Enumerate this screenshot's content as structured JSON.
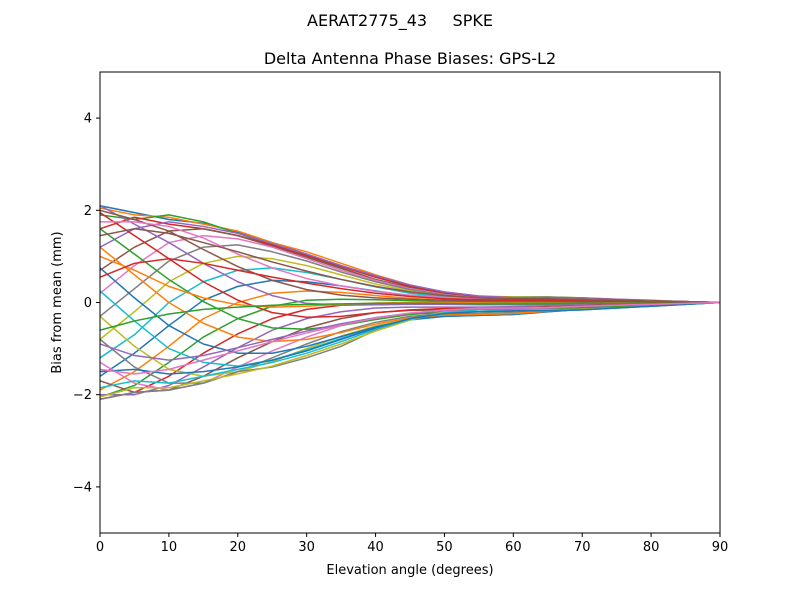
{
  "figure": {
    "suptitle": "AERAT2775_43     SPKE"
  },
  "chart_data": {
    "type": "line",
    "title": "Delta Antenna Phase Biases: GPS-L2",
    "xlabel": "Elevation angle (degrees)",
    "ylabel": "Bias from mean (mm)",
    "xlim": [
      0,
      90
    ],
    "ylim": [
      -5,
      5
    ],
    "xticks": [
      0,
      10,
      20,
      30,
      40,
      50,
      60,
      70,
      80,
      90
    ],
    "yticks": [
      -4,
      -2,
      0,
      2,
      4
    ],
    "ytick_labels": [
      "−4",
      "−2",
      "0",
      "2",
      "4"
    ],
    "grid": false,
    "legend": "none",
    "colors": [
      "#1f77b4",
      "#ff7f0e",
      "#2ca02c",
      "#d62728",
      "#9467bd",
      "#8c564b",
      "#e377c2",
      "#7f7f7f",
      "#bcbd22",
      "#17becf"
    ],
    "x": [
      0,
      5,
      10,
      15,
      20,
      25,
      30,
      35,
      40,
      45,
      50,
      55,
      60,
      65,
      70,
      75,
      80,
      85,
      90
    ],
    "series": [
      {
        "values": [
          2.1,
          1.95,
          1.8,
          1.72,
          1.52,
          1.3,
          1.05,
          0.8,
          0.55,
          0.35,
          0.2,
          0.12,
          0.1,
          0.1,
          0.08,
          0.05,
          0.03,
          0.02,
          0
        ]
      },
      {
        "values": [
          2.05,
          1.9,
          1.85,
          1.7,
          1.55,
          1.3,
          1.1,
          0.85,
          0.6,
          0.38,
          0.22,
          0.14,
          0.12,
          0.12,
          0.1,
          0.07,
          0.04,
          0.02,
          0
        ]
      },
      {
        "values": [
          1.9,
          1.8,
          1.9,
          1.75,
          1.5,
          1.25,
          1.0,
          0.75,
          0.5,
          0.32,
          0.2,
          0.13,
          0.11,
          0.12,
          0.1,
          0.06,
          0.04,
          0.02,
          0
        ]
      },
      {
        "values": [
          1.6,
          1.85,
          1.7,
          1.6,
          1.45,
          1.25,
          1.02,
          0.78,
          0.55,
          0.35,
          0.2,
          0.12,
          0.1,
          0.1,
          0.08,
          0.06,
          0.04,
          0.02,
          0
        ]
      },
      {
        "values": [
          1.2,
          1.6,
          1.75,
          1.65,
          1.5,
          1.28,
          1.05,
          0.8,
          0.58,
          0.38,
          0.23,
          0.14,
          0.1,
          0.11,
          0.1,
          0.07,
          0.05,
          0.02,
          0
        ]
      },
      {
        "values": [
          0.7,
          1.2,
          1.55,
          1.6,
          1.45,
          1.22,
          0.98,
          0.74,
          0.5,
          0.32,
          0.18,
          0.1,
          0.08,
          0.09,
          0.08,
          0.06,
          0.04,
          0.02,
          0
        ]
      },
      {
        "values": [
          0.2,
          0.8,
          1.3,
          1.45,
          1.38,
          1.2,
          0.95,
          0.7,
          0.48,
          0.3,
          0.17,
          0.1,
          0.08,
          0.08,
          0.07,
          0.05,
          0.03,
          0.01,
          0
        ]
      },
      {
        "values": [
          -0.3,
          0.3,
          0.9,
          1.2,
          1.25,
          1.1,
          0.9,
          0.66,
          0.45,
          0.28,
          0.16,
          0.09,
          0.07,
          0.08,
          0.07,
          0.05,
          0.03,
          0.01,
          0
        ]
      },
      {
        "values": [
          -0.8,
          -0.2,
          0.45,
          0.85,
          1.0,
          0.95,
          0.8,
          0.6,
          0.4,
          0.25,
          0.14,
          0.08,
          0.06,
          0.07,
          0.06,
          0.04,
          0.03,
          0.01,
          0
        ]
      },
      {
        "values": [
          -1.2,
          -0.7,
          0.0,
          0.45,
          0.7,
          0.75,
          0.65,
          0.5,
          0.34,
          0.2,
          0.12,
          0.07,
          0.05,
          0.06,
          0.05,
          0.04,
          0.02,
          0.01,
          0
        ]
      },
      {
        "values": [
          -1.6,
          -1.1,
          -0.5,
          0.05,
          0.35,
          0.48,
          0.45,
          0.36,
          0.25,
          0.15,
          0.08,
          0.04,
          0.03,
          0.04,
          0.04,
          0.03,
          0.02,
          0.01,
          0
        ]
      },
      {
        "values": [
          -1.9,
          -1.5,
          -0.95,
          -0.35,
          0.0,
          0.2,
          0.25,
          0.22,
          0.15,
          0.09,
          0.05,
          0.02,
          0.01,
          0.02,
          0.02,
          0.02,
          0.01,
          0.0,
          0
        ]
      },
      {
        "values": [
          -2.05,
          -1.8,
          -1.3,
          -0.75,
          -0.35,
          -0.08,
          0.05,
          0.07,
          0.06,
          0.04,
          0.02,
          0.0,
          -0.01,
          0.0,
          0.0,
          0.0,
          0.0,
          0.0,
          0
        ]
      },
      {
        "values": [
          -2.1,
          -1.95,
          -1.6,
          -1.1,
          -0.68,
          -0.35,
          -0.15,
          -0.06,
          -0.03,
          -0.03,
          -0.03,
          -0.04,
          -0.04,
          -0.03,
          -0.02,
          -0.01,
          -0.01,
          0.0,
          0
        ]
      },
      {
        "values": [
          -2.0,
          -2.0,
          -1.8,
          -1.4,
          -0.98,
          -0.6,
          -0.35,
          -0.2,
          -0.12,
          -0.1,
          -0.1,
          -0.1,
          -0.09,
          -0.07,
          -0.05,
          -0.04,
          -0.02,
          -0.01,
          0
        ]
      },
      {
        "values": [
          -1.7,
          -1.95,
          -1.9,
          -1.6,
          -1.2,
          -0.85,
          -0.55,
          -0.35,
          -0.22,
          -0.17,
          -0.16,
          -0.15,
          -0.14,
          -0.11,
          -0.08,
          -0.06,
          -0.04,
          -0.02,
          0
        ]
      },
      {
        "values": [
          -1.3,
          -1.75,
          -1.9,
          -1.75,
          -1.4,
          -1.05,
          -0.75,
          -0.5,
          -0.33,
          -0.24,
          -0.21,
          -0.2,
          -0.18,
          -0.14,
          -0.1,
          -0.07,
          -0.05,
          -0.02,
          0
        ]
      },
      {
        "values": [
          -0.8,
          -1.4,
          -1.75,
          -1.75,
          -1.5,
          -1.2,
          -0.9,
          -0.63,
          -0.43,
          -0.3,
          -0.25,
          -0.24,
          -0.22,
          -0.17,
          -0.12,
          -0.09,
          -0.06,
          -0.03,
          0
        ]
      },
      {
        "values": [
          -0.3,
          -0.95,
          -1.45,
          -1.6,
          -1.5,
          -1.28,
          -1.0,
          -0.73,
          -0.51,
          -0.35,
          -0.28,
          -0.26,
          -0.24,
          -0.19,
          -0.14,
          -0.1,
          -0.07,
          -0.03,
          0
        ]
      },
      {
        "values": [
          0.25,
          -0.4,
          -1.0,
          -1.3,
          -1.38,
          -1.25,
          -1.03,
          -0.78,
          -0.55,
          -0.38,
          -0.3,
          -0.28,
          -0.26,
          -0.2,
          -0.15,
          -0.11,
          -0.07,
          -0.03,
          0
        ]
      },
      {
        "values": [
          0.75,
          0.1,
          -0.5,
          -0.9,
          -1.1,
          -1.1,
          -0.95,
          -0.74,
          -0.53,
          -0.37,
          -0.3,
          -0.28,
          -0.26,
          -0.2,
          -0.15,
          -0.11,
          -0.07,
          -0.03,
          0
        ]
      },
      {
        "values": [
          1.2,
          0.6,
          0.0,
          -0.45,
          -0.75,
          -0.85,
          -0.8,
          -0.65,
          -0.47,
          -0.33,
          -0.27,
          -0.26,
          -0.24,
          -0.19,
          -0.14,
          -0.1,
          -0.07,
          -0.03,
          0
        ]
      },
      {
        "values": [
          1.6,
          1.05,
          0.5,
          0.02,
          -0.35,
          -0.55,
          -0.58,
          -0.5,
          -0.37,
          -0.26,
          -0.21,
          -0.2,
          -0.19,
          -0.15,
          -0.11,
          -0.08,
          -0.05,
          -0.02,
          0
        ]
      },
      {
        "values": [
          1.95,
          1.45,
          0.95,
          0.45,
          0.05,
          -0.22,
          -0.32,
          -0.3,
          -0.22,
          -0.16,
          -0.13,
          -0.13,
          -0.12,
          -0.1,
          -0.07,
          -0.05,
          -0.03,
          -0.01,
          0
        ]
      },
      {
        "values": [
          2.1,
          1.7,
          1.3,
          0.85,
          0.45,
          0.15,
          -0.02,
          -0.06,
          -0.05,
          -0.04,
          -0.04,
          -0.05,
          -0.05,
          -0.04,
          -0.03,
          -0.02,
          -0.01,
          0.0,
          0
        ]
      },
      {
        "values": [
          2.0,
          1.8,
          1.55,
          1.15,
          0.78,
          0.48,
          0.28,
          0.16,
          0.1,
          0.07,
          0.05,
          0.03,
          0.03,
          0.03,
          0.02,
          0.02,
          0.01,
          0.0,
          0
        ]
      },
      {
        "values": [
          1.75,
          1.75,
          1.65,
          1.4,
          1.05,
          0.75,
          0.52,
          0.36,
          0.24,
          0.16,
          0.11,
          0.08,
          0.07,
          0.06,
          0.05,
          0.04,
          0.02,
          0.01,
          0
        ]
      },
      {
        "values": [
          -2.1,
          -1.95,
          -1.9,
          -1.75,
          -1.5,
          -1.4,
          -1.2,
          -0.95,
          -0.6,
          -0.35,
          -0.18,
          -0.12,
          -0.12,
          -0.15,
          -0.15,
          -0.12,
          -0.08,
          -0.04,
          0
        ]
      },
      {
        "values": [
          -2.05,
          -1.85,
          -1.85,
          -1.7,
          -1.55,
          -1.38,
          -1.15,
          -0.9,
          -0.62,
          -0.38,
          -0.2,
          -0.13,
          -0.13,
          -0.16,
          -0.15,
          -0.12,
          -0.08,
          -0.04,
          0
        ]
      },
      {
        "values": [
          -1.85,
          -1.7,
          -1.75,
          -1.6,
          -1.45,
          -1.3,
          -1.1,
          -0.85,
          -0.58,
          -0.36,
          -0.22,
          -0.16,
          -0.15,
          -0.17,
          -0.16,
          -0.12,
          -0.08,
          -0.04,
          0
        ]
      },
      {
        "values": [
          -1.5,
          -1.45,
          -1.55,
          -1.5,
          -1.4,
          -1.25,
          -1.05,
          -0.8,
          -0.55,
          -0.35,
          -0.24,
          -0.2,
          -0.18,
          -0.18,
          -0.16,
          -0.12,
          -0.08,
          -0.04,
          0
        ]
      },
      {
        "values": [
          1.0,
          0.7,
          0.35,
          0.1,
          -0.05,
          -0.1,
          -0.08,
          -0.04,
          -0.01,
          0.0,
          0.0,
          -0.01,
          -0.02,
          -0.02,
          -0.02,
          -0.01,
          -0.01,
          0.0,
          0
        ]
      },
      {
        "values": [
          -0.6,
          -0.4,
          -0.25,
          -0.15,
          -0.1,
          -0.06,
          -0.04,
          -0.03,
          -0.02,
          -0.02,
          -0.02,
          -0.03,
          -0.03,
          -0.03,
          -0.02,
          -0.02,
          -0.01,
          0.0,
          0
        ]
      },
      {
        "values": [
          0.55,
          0.85,
          0.95,
          0.85,
          0.7,
          0.55,
          0.42,
          0.3,
          0.2,
          0.13,
          0.08,
          0.06,
          0.05,
          0.05,
          0.04,
          0.03,
          0.02,
          0.01,
          0
        ]
      },
      {
        "values": [
          -0.9,
          -1.15,
          -1.25,
          -1.15,
          -0.98,
          -0.8,
          -0.62,
          -0.46,
          -0.33,
          -0.23,
          -0.17,
          -0.14,
          -0.13,
          -0.11,
          -0.08,
          -0.06,
          -0.04,
          -0.02,
          0
        ]
      },
      {
        "values": [
          1.45,
          1.6,
          1.5,
          1.3,
          1.1,
          0.88,
          0.68,
          0.5,
          0.35,
          0.23,
          0.15,
          0.1,
          0.08,
          0.08,
          0.06,
          0.05,
          0.03,
          0.01,
          0
        ]
      },
      {
        "values": [
          -1.45,
          -1.55,
          -1.45,
          -1.25,
          -1.05,
          -0.85,
          -0.66,
          -0.49,
          -0.34,
          -0.23,
          -0.16,
          -0.13,
          -0.12,
          -0.11,
          -0.08,
          -0.06,
          -0.04,
          -0.02,
          0
        ]
      }
    ]
  }
}
